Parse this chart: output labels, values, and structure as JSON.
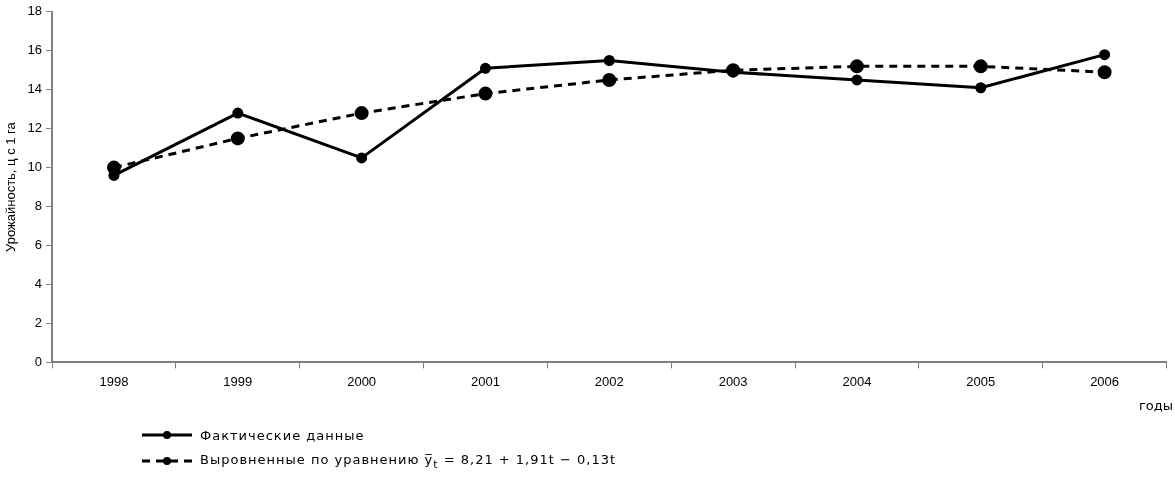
{
  "chart_data": {
    "type": "line",
    "xlabel": "годы",
    "ylabel": "Урожайность, ц с 1 га",
    "categories": [
      "1998",
      "1999",
      "2000",
      "2001",
      "2002",
      "2003",
      "2004",
      "2005",
      "2006"
    ],
    "series": [
      {
        "name": "Фактические данные",
        "color": "#000000",
        "line_style": "solid",
        "values": [
          9.6,
          12.8,
          10.5,
          15.1,
          15.5,
          14.9,
          14.5,
          14.1,
          15.8
        ]
      },
      {
        "name": "Выровненные по уравнению  y̅$_{t}$ = 8,21 + 1,91t − 0,13t",
        "color": "#000000",
        "line_style": "dashed",
        "values": [
          10.0,
          11.5,
          12.8,
          13.8,
          14.5,
          15.0,
          15.2,
          15.2,
          14.9
        ]
      }
    ],
    "ylim": [
      0,
      18
    ],
    "yticks": [
      0,
      2,
      4,
      6,
      8,
      10,
      12,
      14,
      16,
      18
    ],
    "grid": false,
    "legend": "bottom left",
    "marker": "circle"
  }
}
